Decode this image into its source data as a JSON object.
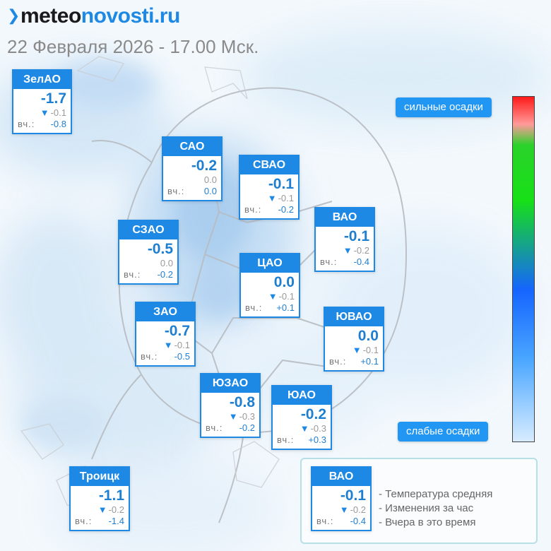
{
  "header": {
    "logo_prefix": "meteo",
    "logo_suffix": "novosti.ru",
    "date_line": "22 Февраля 2026 - 17.00 Мск."
  },
  "scale": {
    "strong_label": "сильные осадки",
    "weak_label": "слабые осадки",
    "colors": [
      "#ff1a1a",
      "#17e017",
      "#1565ff",
      "#d8ecff"
    ]
  },
  "districts": [
    {
      "id": "zelao",
      "name": "ЗелАО",
      "temp": "-1.7",
      "change": "-0.1",
      "change_dir": "down",
      "yesterday_label": "вч.:",
      "yesterday": "-0.8"
    },
    {
      "id": "sao",
      "name": "САО",
      "temp": "-0.2",
      "change": "0.0",
      "change_dir": "none",
      "yesterday_label": "вч.:",
      "yesterday": "0.0"
    },
    {
      "id": "svao",
      "name": "СВАО",
      "temp": "-0.1",
      "change": "-0.1",
      "change_dir": "down",
      "yesterday_label": "вч.:",
      "yesterday": "-0.2"
    },
    {
      "id": "vao",
      "name": "ВАО",
      "temp": "-0.1",
      "change": "-0.2",
      "change_dir": "down",
      "yesterday_label": "вч.:",
      "yesterday": "-0.4"
    },
    {
      "id": "szao",
      "name": "СЗАО",
      "temp": "-0.5",
      "change": "0.0",
      "change_dir": "none",
      "yesterday_label": "вч.:",
      "yesterday": "-0.2"
    },
    {
      "id": "cao",
      "name": "ЦАО",
      "temp": "0.0",
      "change": "-0.1",
      "change_dir": "down",
      "yesterday_label": "вч.:",
      "yesterday": "+0.1"
    },
    {
      "id": "zao",
      "name": "ЗАО",
      "temp": "-0.7",
      "change": "-0.1",
      "change_dir": "down",
      "yesterday_label": "вч.:",
      "yesterday": "-0.5"
    },
    {
      "id": "yuvao",
      "name": "ЮВАО",
      "temp": "0.0",
      "change": "-0.1",
      "change_dir": "down",
      "yesterday_label": "вч.:",
      "yesterday": "+0.1"
    },
    {
      "id": "yuzao",
      "name": "ЮЗАО",
      "temp": "-0.8",
      "change": "-0.3",
      "change_dir": "down",
      "yesterday_label": "вч.:",
      "yesterday": "-0.2"
    },
    {
      "id": "yuao",
      "name": "ЮАО",
      "temp": "-0.2",
      "change": "-0.3",
      "change_dir": "down",
      "yesterday_label": "вч.:",
      "yesterday": "+0.3"
    },
    {
      "id": "troick",
      "name": "Троицк",
      "temp": "-1.1",
      "change": "-0.2",
      "change_dir": "down",
      "yesterday_label": "вч.:",
      "yesterday": "-1.4"
    }
  ],
  "legend": {
    "example": {
      "name": "ВАО",
      "temp": "-0.1",
      "change": "-0.2",
      "yesterday_label": "вч.:",
      "yesterday": "-0.4"
    },
    "line1": "- Температура средняя",
    "line2": "- Изменения за час",
    "line3": "- Вчера в это время"
  }
}
